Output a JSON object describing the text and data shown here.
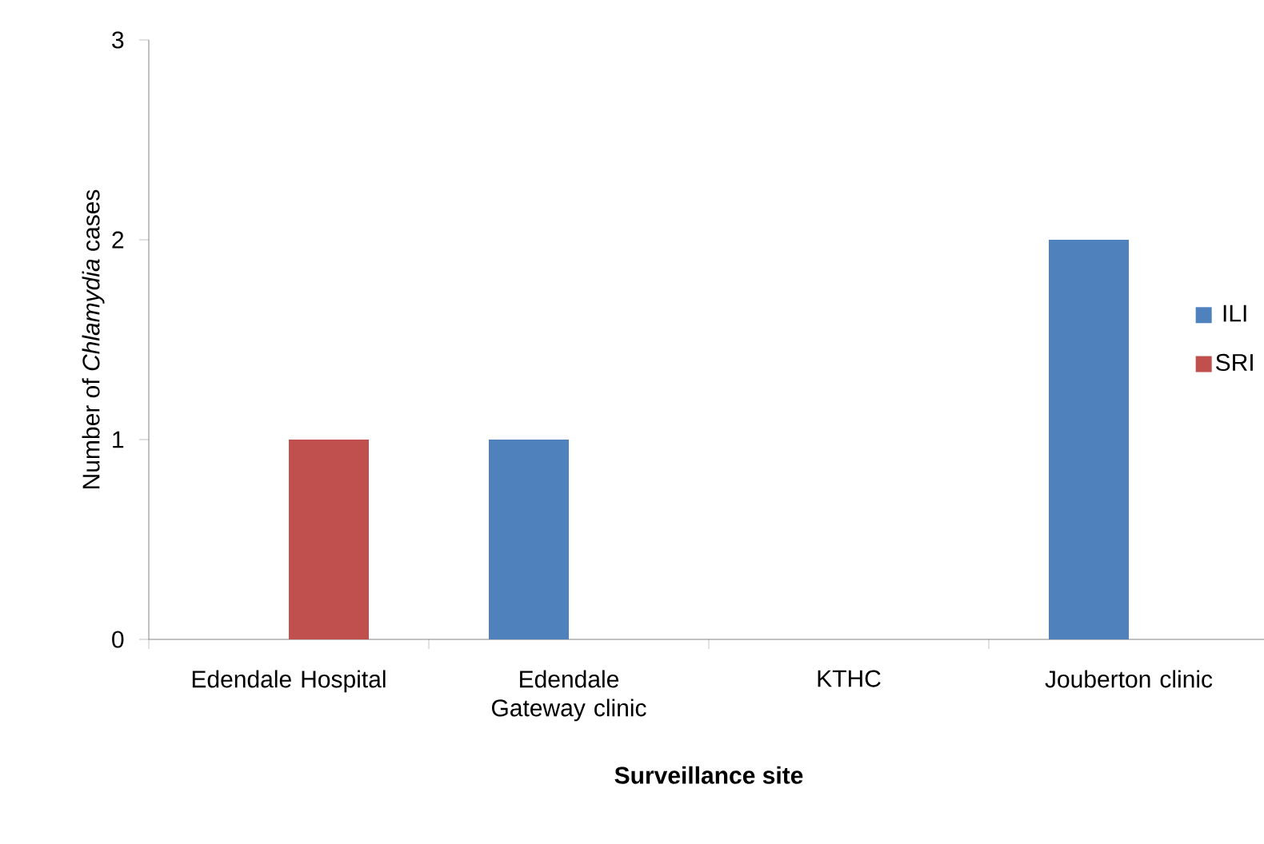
{
  "chart_data": {
    "type": "bar",
    "xlabel": "Surveillance site",
    "ylabel": "Number of *Chlamydia* cases",
    "categories": [
      "Edendale Hospital",
      "Edendale Gateway clinic",
      "KTHC",
      "Jouberton clinic"
    ],
    "series": [
      {
        "name": "ILI",
        "color": "#4f81bd",
        "values": [
          0,
          1,
          0,
          2
        ]
      },
      {
        "name": "SRI",
        "color": "#c0504d",
        "values": [
          1,
          0,
          0,
          0
        ]
      }
    ],
    "ylim": [
      0,
      3
    ],
    "yticks": [
      0,
      1,
      2,
      3
    ],
    "grid": false,
    "legend": "right"
  }
}
